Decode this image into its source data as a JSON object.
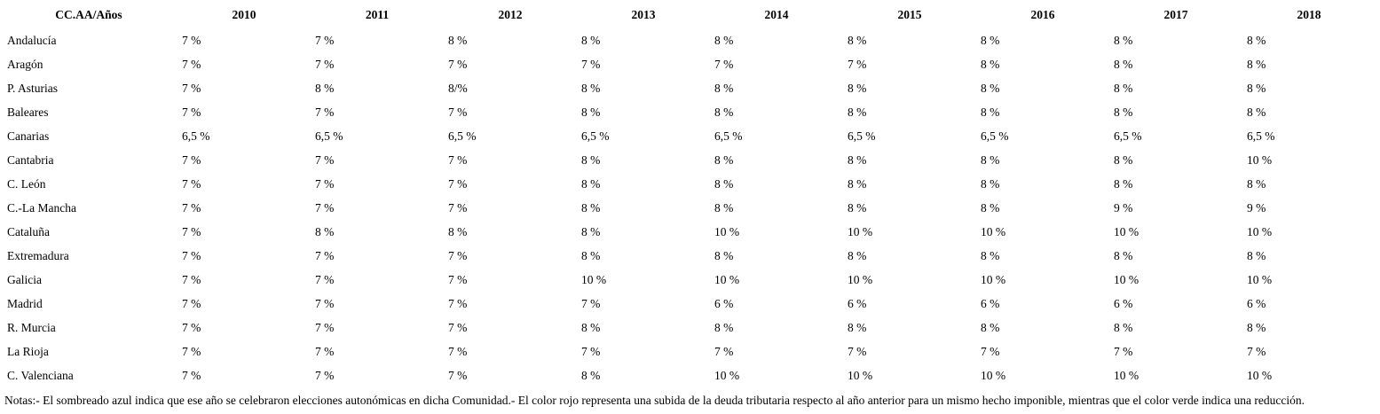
{
  "colors": {
    "text": "#000000",
    "background": "#ffffff"
  },
  "table": {
    "header_row": [
      "CC.AA/Años",
      "2010",
      "2011",
      "2012",
      "2013",
      "2014",
      "2015",
      "2016",
      "2017",
      "2018"
    ],
    "rows": [
      {
        "name": "Andalucía",
        "values": [
          "7 %",
          "7 %",
          "8 %",
          "8 %",
          "8 %",
          "8 %",
          "8 %",
          "8 %",
          "8 %"
        ]
      },
      {
        "name": "Aragón",
        "values": [
          "7 %",
          "7 %",
          "7 %",
          "7 %",
          "7 %",
          "7 %",
          "8 %",
          "8 %",
          "8 %"
        ]
      },
      {
        "name": "P. Asturias",
        "values": [
          "7 %",
          "8 %",
          "8/%",
          "8 %",
          "8 %",
          "8 %",
          "8 %",
          "8 %",
          "8 %"
        ]
      },
      {
        "name": "Baleares",
        "values": [
          "7 %",
          "7 %",
          "7 %",
          "8 %",
          "8 %",
          "8 %",
          "8 %",
          "8 %",
          "8 %"
        ]
      },
      {
        "name": "Canarias",
        "values": [
          "6,5 %",
          "6,5 %",
          "6,5 %",
          "6,5 %",
          "6,5 %",
          "6,5 %",
          "6,5 %",
          "6,5 %",
          "6,5 %"
        ]
      },
      {
        "name": "Cantabria",
        "values": [
          "7 %",
          "7 %",
          "7 %",
          "8 %",
          "8 %",
          "8 %",
          "8 %",
          "8 %",
          "10 %"
        ]
      },
      {
        "name": "C. León",
        "values": [
          "7 %",
          "7 %",
          "7 %",
          "8 %",
          "8 %",
          "8 %",
          "8 %",
          "8 %",
          "8 %"
        ]
      },
      {
        "name": "C.-La Mancha",
        "values": [
          "7 %",
          "7 %",
          "7 %",
          "8 %",
          "8 %",
          "8 %",
          "8 %",
          "9 %",
          "9 %"
        ]
      },
      {
        "name": "Cataluña",
        "values": [
          "7 %",
          "8 %",
          "8 %",
          "8 %",
          "10 %",
          "10 %",
          "10 %",
          "10 %",
          "10 %"
        ]
      },
      {
        "name": "Extremadura",
        "values": [
          "7 %",
          "7 %",
          "7 %",
          "8 %",
          "8 %",
          "8 %",
          "8 %",
          "8 %",
          "8 %"
        ]
      },
      {
        "name": "Galicia",
        "values": [
          "7 %",
          "7 %",
          "7 %",
          "10 %",
          "10 %",
          "10 %",
          "10 %",
          "10 %",
          "10 %"
        ]
      },
      {
        "name": "Madrid",
        "values": [
          "7 %",
          "7 %",
          "7 %",
          "7 %",
          "6 %",
          "6 %",
          "6 %",
          "6 %",
          "6 %"
        ]
      },
      {
        "name": "R. Murcia",
        "values": [
          "7 %",
          "7 %",
          "7 %",
          "8 %",
          "8 %",
          "8 %",
          "8 %",
          "8 %",
          "8 %"
        ]
      },
      {
        "name": "La Rioja",
        "values": [
          "7 %",
          "7 %",
          "7 %",
          "7 %",
          "7 %",
          "7 %",
          "7 %",
          "7 %",
          "7 %"
        ]
      },
      {
        "name": "C. Valenciana",
        "values": [
          "7 %",
          "7 %",
          "7 %",
          "8 %",
          "10 %",
          "10 %",
          "10 %",
          "10 %",
          "10 %"
        ]
      }
    ]
  },
  "notes": "Notas:- El sombreado azul indica que ese año se celebraron elecciones autonómicas en dicha Comunidad.- El color rojo representa una subida de la deuda tributaria respecto al año anterior para un mismo hecho imponible, mientras que el color verde indica una reducción."
}
